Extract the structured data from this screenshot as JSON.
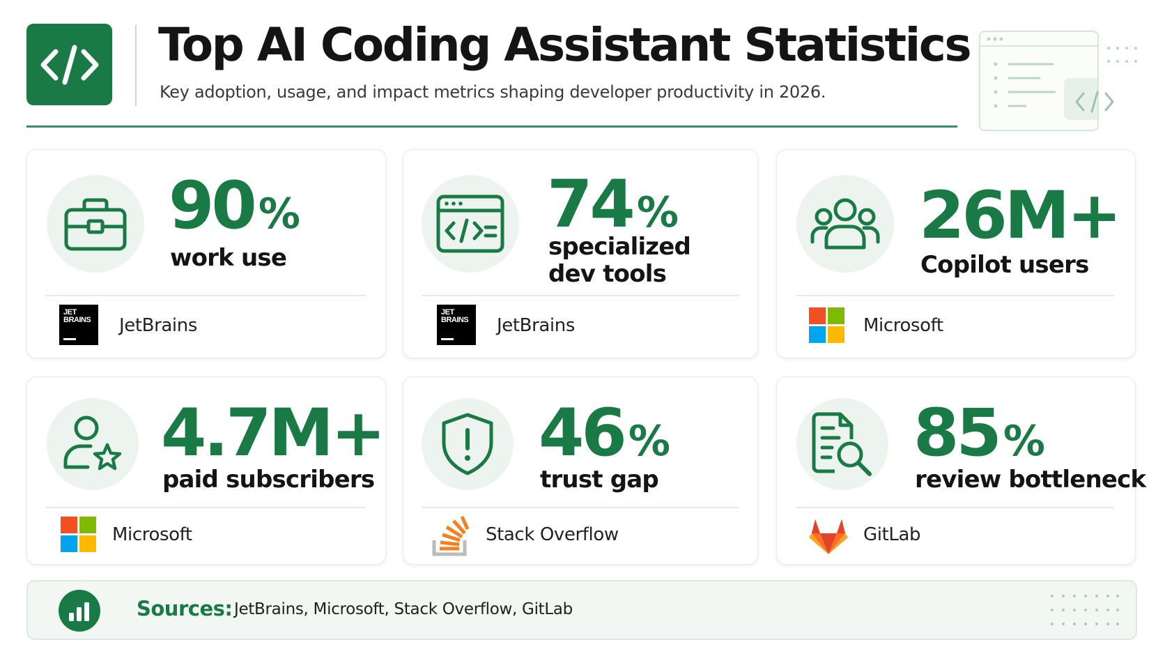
{
  "header": {
    "title": "Top AI Coding Assistant Statistics",
    "subtitle": "Key adoption, usage, and impact metrics shaping developer productivity in 2026.",
    "logo_icon": "code-brackets-icon"
  },
  "colors": {
    "accent": "#1a7a45",
    "icon_circle": "#edf3ee",
    "card_border": "#e6ebe7",
    "sources_bg": "#f2f7f3",
    "microsoft": [
      "#f25022",
      "#7fba00",
      "#00a4ef",
      "#ffb900"
    ],
    "stack_overflow": "#f48024",
    "gitlab": [
      "#e24329",
      "#fc6d26",
      "#fca326"
    ]
  },
  "stats": [
    {
      "number": "90",
      "unit": "%",
      "label": "work use",
      "icon": "briefcase-icon",
      "source": "JetBrains",
      "logo": "jetbrains-logo"
    },
    {
      "number": "74",
      "unit": "%",
      "label": "specialized dev tools",
      "icon": "code-window-icon",
      "source": "JetBrains",
      "logo": "jetbrains-logo"
    },
    {
      "number": "26M+",
      "unit": "",
      "label": "Copilot users",
      "icon": "users-group-icon",
      "source": "Microsoft",
      "logo": "microsoft-logo"
    },
    {
      "number": "4.7M+",
      "unit": "",
      "label": "paid subscribers",
      "icon": "user-star-icon",
      "source": "Microsoft",
      "logo": "microsoft-logo"
    },
    {
      "number": "46",
      "unit": "%",
      "label": "trust gap",
      "icon": "shield-alert-icon",
      "source": "Stack Overflow",
      "logo": "stackoverflow-logo"
    },
    {
      "number": "85",
      "unit": "%",
      "label": "review bottleneck",
      "icon": "document-search-icon",
      "source": "GitLab",
      "logo": "gitlab-logo"
    }
  ],
  "jetbrains_logo_text": [
    "JET",
    "BRAINS"
  ],
  "sources": {
    "label": "Sources:",
    "list": "JetBrains, Microsoft, Stack Overflow, GitLab",
    "icon": "bar-chart-icon"
  }
}
